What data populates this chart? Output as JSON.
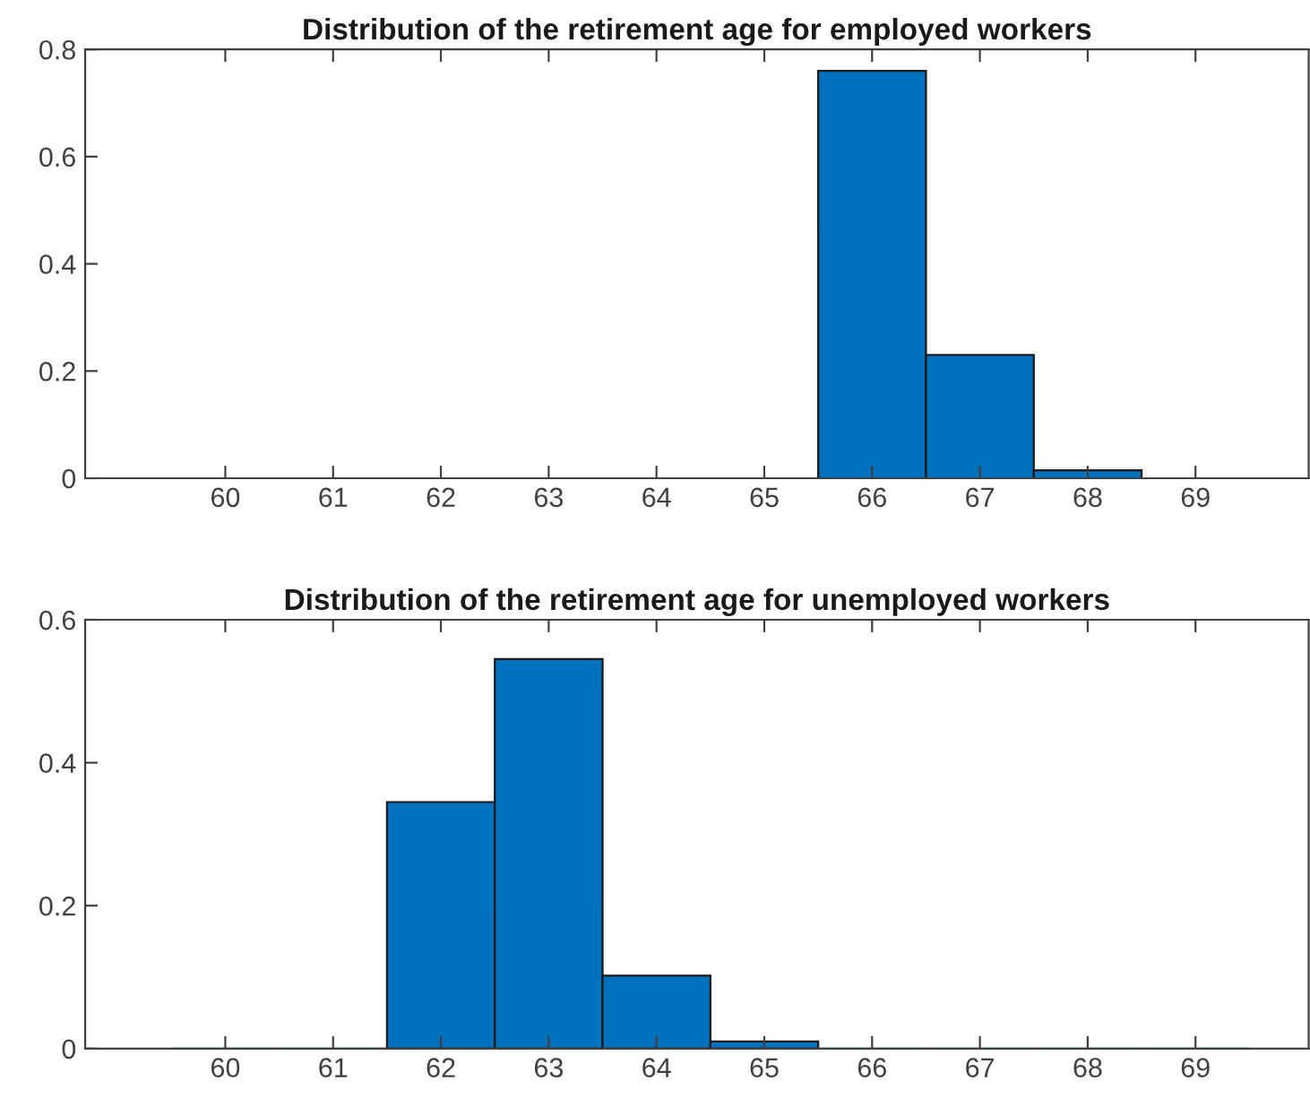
{
  "chart_data": [
    {
      "type": "histogram",
      "title": "Distribution of the retirement age for employed workers",
      "bins": [
        59.5,
        60.5,
        61.5,
        62.5,
        63.5,
        64.5,
        65.5,
        66.5,
        67.5,
        68.5,
        69.5
      ],
      "values": [
        0,
        0,
        0,
        0,
        0,
        0,
        0.76,
        0.23,
        0.015,
        0
      ],
      "color": "#0072bd",
      "xlim": [
        58.7,
        70.05
      ],
      "xticks": [
        60,
        61,
        62,
        63,
        64,
        65,
        66,
        67,
        68,
        69
      ],
      "ylim": [
        0,
        0.8
      ],
      "yticks": [
        0,
        0.2,
        0.4,
        0.6,
        0.8
      ],
      "grid": false,
      "legend": false
    },
    {
      "type": "histogram",
      "title": "Distribution of the retirement age for unemployed workers",
      "bins": [
        59.5,
        60.5,
        61.5,
        62.5,
        63.5,
        64.5,
        65.5,
        66.5,
        67.5,
        68.5,
        69.5
      ],
      "values": [
        0,
        0,
        0.345,
        0.545,
        0.102,
        0.01,
        0,
        0,
        0,
        0
      ],
      "color": "#0072bd",
      "xlim": [
        58.7,
        70.05
      ],
      "xticks": [
        60,
        61,
        62,
        63,
        64,
        65,
        66,
        67,
        68,
        69
      ],
      "ylim": [
        0,
        0.6
      ],
      "yticks": [
        0,
        0.2,
        0.4,
        0.6
      ],
      "grid": false,
      "legend": false
    }
  ]
}
